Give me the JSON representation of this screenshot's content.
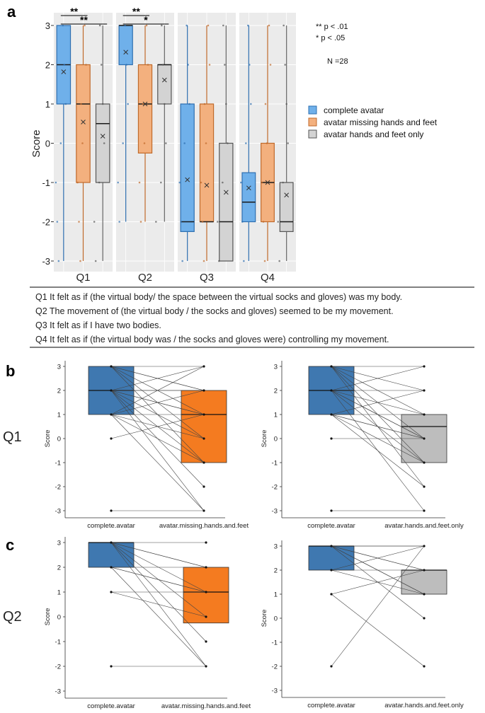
{
  "panel_labels": {
    "a": "a",
    "b": "b",
    "c": "c"
  },
  "row_labels": {
    "b": "Q1",
    "c": "Q2"
  },
  "questions": [
    "Q1  It felt as if (the virtual body/ the space between the virtual socks and gloves) was my body.",
    "Q2  The movement of (the virtual body / the socks and gloves) seemed to be my movement.",
    "Q3  It felt as if I have two bodies.",
    "Q4  It felt as if (the virtual body was / the socks and gloves were) controlling my movement."
  ],
  "colors": {
    "complete": "#6fb0ea",
    "missing": "#f3b07e",
    "hf_only": "#d3d3d3",
    "complete_dark": "#3f78b0",
    "missing_dark": "#f47b20",
    "hf_only_dark": "#bdbdbd",
    "panel_bg": "#ebebeb"
  },
  "chart_data": [
    {
      "type": "box",
      "panel": "a",
      "ylabel": "Score",
      "ylim": [
        -3,
        3
      ],
      "yticks": [
        "3",
        "2",
        "1",
        "0",
        "-1",
        "-2",
        "-3"
      ],
      "facets": [
        "Q1",
        "Q2",
        "Q3",
        "Q4"
      ],
      "legend": [
        "complete avatar",
        "avatar missing hands and feet",
        "avatar hands and feet only"
      ],
      "notes": [
        "** p < .01",
        "*  p < .05",
        "N =28"
      ],
      "significance": [
        {
          "facet": "Q1",
          "label": "**",
          "from": 0,
          "to": 1
        },
        {
          "facet": "Q1",
          "label": "**",
          "from": 0,
          "to": 2
        },
        {
          "facet": "Q2",
          "label": "**",
          "from": 0,
          "to": 1
        },
        {
          "facet": "Q2",
          "label": "*",
          "from": 0,
          "to": 2
        }
      ],
      "series": [
        {
          "name": "complete avatar",
          "boxes": [
            {
              "facet": "Q1",
              "min": -3,
              "q1": 1,
              "median": 2,
              "q3": 3,
              "max": 3,
              "mean": 1.82
            },
            {
              "facet": "Q2",
              "min": -2,
              "q1": 2,
              "median": 3,
              "q3": 3,
              "max": 3,
              "mean": 2.32
            },
            {
              "facet": "Q3",
              "min": -3,
              "q1": -2.25,
              "median": -2,
              "q3": 1,
              "max": 3,
              "mean": -0.93
            },
            {
              "facet": "Q4",
              "min": -3,
              "q1": -2,
              "median": -1.5,
              "q3": -0.75,
              "max": 3,
              "mean": -1.14
            }
          ]
        },
        {
          "name": "avatar missing hands and feet",
          "boxes": [
            {
              "facet": "Q1",
              "min": -3,
              "q1": -1,
              "median": 1,
              "q3": 2,
              "max": 3,
              "mean": 0.54
            },
            {
              "facet": "Q2",
              "min": -2,
              "q1": -0.25,
              "median": 1,
              "q3": 2,
              "max": 3,
              "mean": 1.0
            },
            {
              "facet": "Q3",
              "min": -3,
              "q1": -2,
              "median": -2,
              "q3": 1,
              "max": 3,
              "mean": -1.07
            },
            {
              "facet": "Q4",
              "min": -3,
              "q1": -2,
              "median": -1,
              "q3": 0,
              "max": 3,
              "mean": -1.0
            }
          ]
        },
        {
          "name": "avatar hands and feet only",
          "boxes": [
            {
              "facet": "Q1",
              "min": -3,
              "q1": -1,
              "median": 0.5,
              "q3": 1,
              "max": 3,
              "mean": 0.18
            },
            {
              "facet": "Q2",
              "min": -2,
              "q1": 1,
              "median": 2,
              "q3": 2,
              "max": 3,
              "mean": 1.61
            },
            {
              "facet": "Q3",
              "min": -3,
              "q1": -3,
              "median": -2,
              "q3": 0,
              "max": 3,
              "mean": -1.25
            },
            {
              "facet": "Q4",
              "min": -3,
              "q1": -2.25,
              "median": -2,
              "q3": -1,
              "max": 3,
              "mean": -1.32
            }
          ]
        }
      ]
    },
    {
      "type": "paired-box",
      "panel": "b",
      "question": "Q1",
      "ylabel": "Score",
      "ylim": [
        -3,
        3
      ],
      "yticks": [
        "3",
        "2",
        "1",
        "0",
        "-1",
        "-2",
        "-3"
      ],
      "categories": [
        "complete.avatar",
        "avatar.missing.hands.and.feet"
      ],
      "boxes": [
        {
          "q1": 1,
          "median": 2,
          "q3": 3
        },
        {
          "q1": -1,
          "median": 1,
          "q3": 2
        }
      ],
      "pairs": [
        [
          3,
          3
        ],
        [
          3,
          2
        ],
        [
          3,
          1
        ],
        [
          3,
          0
        ],
        [
          3,
          -1
        ],
        [
          3,
          2
        ],
        [
          2,
          3
        ],
        [
          2,
          2
        ],
        [
          2,
          1
        ],
        [
          2,
          0
        ],
        [
          2,
          -2
        ],
        [
          2,
          -3
        ],
        [
          2,
          1
        ],
        [
          2,
          -1
        ],
        [
          2,
          2
        ],
        [
          1,
          3
        ],
        [
          1,
          1
        ],
        [
          1,
          0
        ],
        [
          1,
          -1
        ],
        [
          1,
          2
        ],
        [
          1,
          -3
        ],
        [
          0,
          1
        ],
        [
          -3,
          -3
        ]
      ]
    },
    {
      "type": "paired-box",
      "panel": "b",
      "question": "Q1",
      "ylabel": "Score",
      "ylim": [
        -3,
        3
      ],
      "yticks": [
        "3",
        "2",
        "1",
        "0",
        "-1",
        "-2",
        "-3"
      ],
      "categories": [
        "complete.avatar",
        "avatar.hands.and.feet.only"
      ],
      "boxes": [
        {
          "q1": 1,
          "median": 2,
          "q3": 3
        },
        {
          "q1": -1,
          "median": 0.5,
          "q3": 1
        }
      ],
      "pairs": [
        [
          3,
          3
        ],
        [
          3,
          2
        ],
        [
          3,
          1
        ],
        [
          3,
          0
        ],
        [
          3,
          -1
        ],
        [
          3,
          -2
        ],
        [
          2,
          3
        ],
        [
          2,
          2
        ],
        [
          2,
          1
        ],
        [
          2,
          0
        ],
        [
          2,
          -1
        ],
        [
          2,
          -3
        ],
        [
          2,
          0
        ],
        [
          1,
          2
        ],
        [
          1,
          1
        ],
        [
          1,
          0
        ],
        [
          1,
          -1
        ],
        [
          1,
          -2
        ],
        [
          1,
          0
        ],
        [
          0,
          0
        ],
        [
          -3,
          -3
        ]
      ]
    },
    {
      "type": "paired-box",
      "panel": "c",
      "question": "Q2",
      "ylabel": "Score",
      "ylim": [
        -3,
        3
      ],
      "yticks": [
        "3",
        "2",
        "1",
        "0",
        "-1",
        "-2",
        "-3"
      ],
      "categories": [
        "complete.avatar",
        "avatar.missing.hands.and.feet"
      ],
      "boxes": [
        {
          "q1": 2,
          "median": 3,
          "q3": 3
        },
        {
          "q1": -0.25,
          "median": 1,
          "q3": 2
        }
      ],
      "pairs": [
        [
          3,
          3
        ],
        [
          3,
          2
        ],
        [
          3,
          1
        ],
        [
          3,
          0
        ],
        [
          3,
          -1
        ],
        [
          3,
          -2
        ],
        [
          3,
          2
        ],
        [
          2,
          2
        ],
        [
          2,
          1
        ],
        [
          2,
          -2
        ],
        [
          2,
          1
        ],
        [
          1,
          1
        ],
        [
          1,
          0
        ],
        [
          -2,
          -2
        ]
      ]
    },
    {
      "type": "paired-box",
      "panel": "c",
      "question": "Q2",
      "ylabel": "Score",
      "ylim": [
        -3,
        3
      ],
      "yticks": [
        "3",
        "2",
        "1",
        "0",
        "-1",
        "-2",
        "-3"
      ],
      "categories": [
        "complete.avatar",
        "avatar.hands.and.feet.only"
      ],
      "boxes": [
        {
          "q1": 2,
          "median": 3,
          "q3": 3
        },
        {
          "q1": 1,
          "median": 2,
          "q3": 2
        }
      ],
      "pairs": [
        [
          3,
          3
        ],
        [
          3,
          2
        ],
        [
          3,
          1
        ],
        [
          3,
          3
        ],
        [
          3,
          0
        ],
        [
          3,
          2
        ],
        [
          2,
          2
        ],
        [
          2,
          1
        ],
        [
          2,
          3
        ],
        [
          1,
          2
        ],
        [
          1,
          -2
        ],
        [
          -2,
          3
        ],
        [
          3,
          1
        ]
      ]
    }
  ]
}
